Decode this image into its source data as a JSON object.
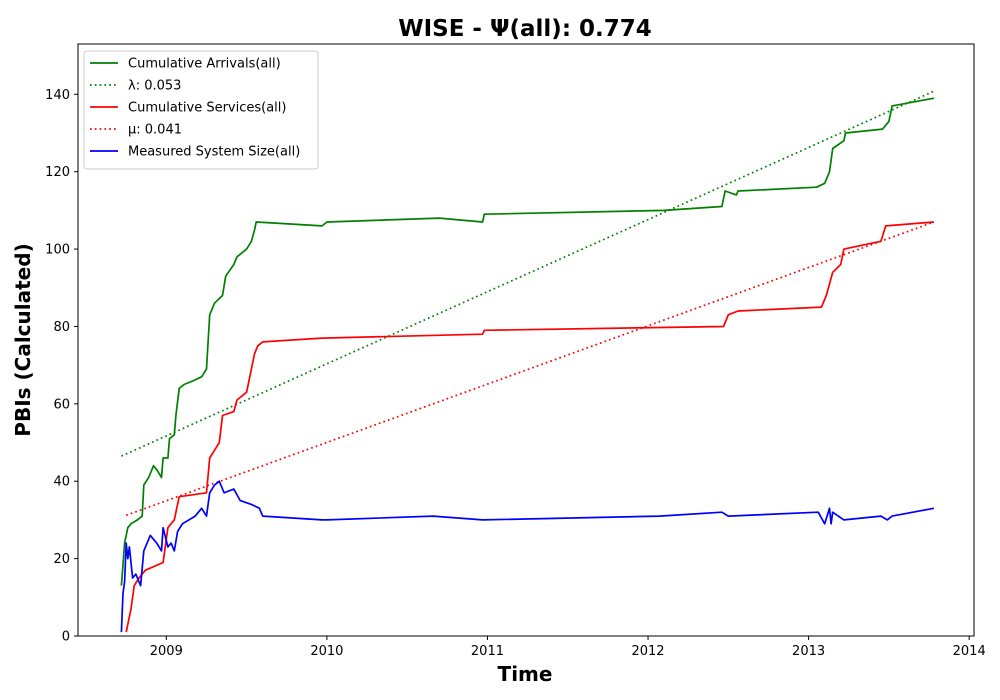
{
  "chart_data": {
    "type": "line",
    "title": "WISE -  Ψ(all): 0.774",
    "xlabel": "Time",
    "ylabel": "PBIs (Calculated)",
    "xlim": [
      2008.45,
      2014.03
    ],
    "ylim": [
      0,
      153
    ],
    "x_ticks": [
      2009,
      2010,
      2011,
      2012,
      2013,
      2014
    ],
    "y_ticks": [
      0,
      20,
      40,
      60,
      80,
      100,
      120,
      140
    ],
    "grid": false,
    "legend_position": "top-left",
    "series": [
      {
        "name": "Cumulative Arrivals(all)",
        "color": "#008000",
        "style": "solid",
        "points": [
          [
            2008.72,
            13
          ],
          [
            2008.74,
            24
          ],
          [
            2008.76,
            28
          ],
          [
            2008.78,
            29
          ],
          [
            2008.82,
            30
          ],
          [
            2008.85,
            31
          ],
          [
            2008.86,
            39
          ],
          [
            2008.89,
            41
          ],
          [
            2008.92,
            44
          ],
          [
            2008.94,
            43
          ],
          [
            2008.97,
            41
          ],
          [
            2008.98,
            46
          ],
          [
            2009.01,
            46
          ],
          [
            2009.02,
            51
          ],
          [
            2009.05,
            52
          ],
          [
            2009.06,
            57
          ],
          [
            2009.08,
            64
          ],
          [
            2009.11,
            65
          ],
          [
            2009.17,
            66
          ],
          [
            2009.22,
            67
          ],
          [
            2009.25,
            69
          ],
          [
            2009.26,
            76
          ],
          [
            2009.27,
            83
          ],
          [
            2009.3,
            86
          ],
          [
            2009.35,
            88
          ],
          [
            2009.37,
            93
          ],
          [
            2009.42,
            96
          ],
          [
            2009.44,
            98
          ],
          [
            2009.5,
            100
          ],
          [
            2009.53,
            102
          ],
          [
            2009.55,
            105
          ],
          [
            2009.56,
            107
          ],
          [
            2009.97,
            106
          ],
          [
            2010.0,
            107
          ],
          [
            2010.7,
            108
          ],
          [
            2010.97,
            107
          ],
          [
            2010.98,
            109
          ],
          [
            2012.1,
            110
          ],
          [
            2012.46,
            111
          ],
          [
            2012.48,
            115
          ],
          [
            2012.55,
            114
          ],
          [
            2012.56,
            115
          ],
          [
            2013.05,
            116
          ],
          [
            2013.1,
            117
          ],
          [
            2013.13,
            120
          ],
          [
            2013.15,
            126
          ],
          [
            2013.22,
            128
          ],
          [
            2013.23,
            130
          ],
          [
            2013.46,
            131
          ],
          [
            2013.5,
            133
          ],
          [
            2013.52,
            137
          ],
          [
            2013.78,
            139
          ]
        ]
      },
      {
        "name": "λ: 0.053",
        "color": "#008000",
        "style": "dotted",
        "points": [
          [
            2008.72,
            46.5
          ],
          [
            2013.78,
            140.8
          ]
        ]
      },
      {
        "name": "Cumulative Services(all)",
        "color": "#ff0000",
        "style": "solid",
        "points": [
          [
            2008.75,
            1
          ],
          [
            2008.78,
            7
          ],
          [
            2008.8,
            13
          ],
          [
            2008.83,
            15
          ],
          [
            2008.87,
            17
          ],
          [
            2008.98,
            19
          ],
          [
            2009.01,
            28
          ],
          [
            2009.05,
            30
          ],
          [
            2009.08,
            36
          ],
          [
            2009.25,
            37
          ],
          [
            2009.27,
            46
          ],
          [
            2009.3,
            48
          ],
          [
            2009.33,
            50
          ],
          [
            2009.35,
            57
          ],
          [
            2009.42,
            58
          ],
          [
            2009.44,
            61
          ],
          [
            2009.5,
            63
          ],
          [
            2009.52,
            67
          ],
          [
            2009.55,
            73
          ],
          [
            2009.57,
            75
          ],
          [
            2009.6,
            76
          ],
          [
            2009.97,
            77
          ],
          [
            2010.97,
            78
          ],
          [
            2010.98,
            79
          ],
          [
            2012.47,
            80
          ],
          [
            2012.5,
            83
          ],
          [
            2012.56,
            84
          ],
          [
            2013.08,
            85
          ],
          [
            2013.11,
            88
          ],
          [
            2013.15,
            94
          ],
          [
            2013.2,
            96
          ],
          [
            2013.22,
            100
          ],
          [
            2013.45,
            102
          ],
          [
            2013.48,
            106
          ],
          [
            2013.78,
            107
          ]
        ]
      },
      {
        "name": "μ: 0.041",
        "color": "#ff0000",
        "style": "dotted",
        "points": [
          [
            2008.75,
            31.2
          ],
          [
            2013.78,
            107
          ]
        ]
      },
      {
        "name": "Measured System Size(all)",
        "color": "#0000ff",
        "style": "solid",
        "points": [
          [
            2008.72,
            1
          ],
          [
            2008.73,
            11
          ],
          [
            2008.74,
            14
          ],
          [
            2008.75,
            24
          ],
          [
            2008.76,
            20
          ],
          [
            2008.77,
            23
          ],
          [
            2008.79,
            15
          ],
          [
            2008.81,
            16
          ],
          [
            2008.84,
            13
          ],
          [
            2008.86,
            22
          ],
          [
            2008.9,
            26
          ],
          [
            2008.94,
            24
          ],
          [
            2008.97,
            22
          ],
          [
            2008.98,
            28
          ],
          [
            2009.01,
            23
          ],
          [
            2009.03,
            24
          ],
          [
            2009.05,
            22
          ],
          [
            2009.07,
            27
          ],
          [
            2009.1,
            29
          ],
          [
            2009.18,
            31
          ],
          [
            2009.22,
            33
          ],
          [
            2009.25,
            31
          ],
          [
            2009.27,
            37
          ],
          [
            2009.3,
            39
          ],
          [
            2009.33,
            40
          ],
          [
            2009.36,
            37
          ],
          [
            2009.42,
            38
          ],
          [
            2009.46,
            35
          ],
          [
            2009.53,
            34
          ],
          [
            2009.58,
            33
          ],
          [
            2009.6,
            31
          ],
          [
            2009.97,
            30
          ],
          [
            2010.0,
            30
          ],
          [
            2010.66,
            31
          ],
          [
            2010.97,
            30
          ],
          [
            2012.07,
            31
          ],
          [
            2012.46,
            32
          ],
          [
            2012.5,
            31
          ],
          [
            2013.06,
            32
          ],
          [
            2013.1,
            29
          ],
          [
            2013.13,
            33
          ],
          [
            2013.14,
            29
          ],
          [
            2013.15,
            32
          ],
          [
            2013.22,
            30
          ],
          [
            2013.45,
            31
          ],
          [
            2013.49,
            30
          ],
          [
            2013.52,
            31
          ],
          [
            2013.78,
            33
          ]
        ]
      }
    ]
  }
}
